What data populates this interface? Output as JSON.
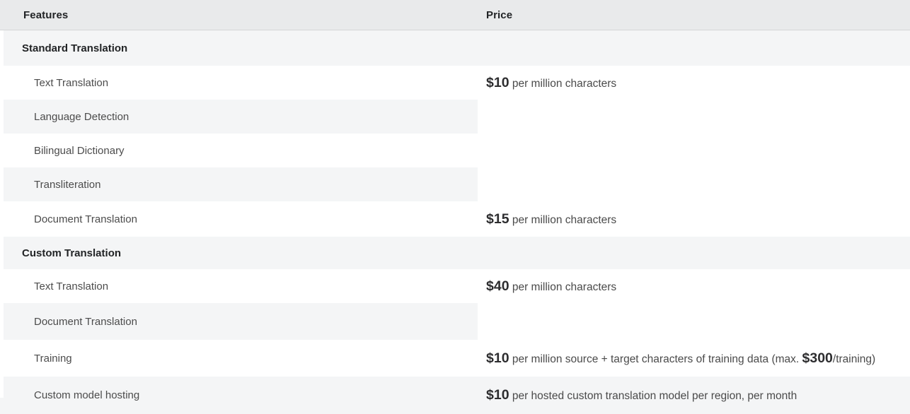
{
  "colors": {
    "header_bg": "#e9eaeb",
    "stripe_bg": "#f4f5f6",
    "header_border": "#d4d6d7",
    "heading_text": "#222426",
    "body_text": "#4c4c4c",
    "price_amount_text": "#2d2d2f"
  },
  "table": {
    "columns": [
      {
        "label": "Features"
      },
      {
        "label": "Price"
      }
    ],
    "rows": [
      {
        "type": "section",
        "feature": "Standard Translation",
        "price_segments": []
      },
      {
        "type": "feature",
        "feature": "Text Translation",
        "price_segments": [
          {
            "text": "$10",
            "emphasis": true
          },
          {
            "text": " per million characters",
            "emphasis": false
          }
        ]
      },
      {
        "type": "feature",
        "feature": "Language Detection",
        "price_segments": []
      },
      {
        "type": "feature",
        "feature": "Bilingual Dictionary",
        "price_segments": []
      },
      {
        "type": "feature",
        "feature": "Transliteration",
        "price_segments": []
      },
      {
        "type": "feature",
        "feature": "Document Translation",
        "price_segments": [
          {
            "text": "$15",
            "emphasis": true
          },
          {
            "text": " per million characters",
            "emphasis": false
          }
        ]
      },
      {
        "type": "section",
        "feature": "Custom Translation",
        "price_segments": []
      },
      {
        "type": "feature",
        "feature": "Text Translation",
        "price_segments": [
          {
            "text": "$40",
            "emphasis": true
          },
          {
            "text": " per million characters",
            "emphasis": false
          }
        ]
      },
      {
        "type": "feature",
        "feature": "Document Translation",
        "price_segments": []
      },
      {
        "type": "feature",
        "feature": "Training",
        "price_segments": [
          {
            "text": "$10",
            "emphasis": true
          },
          {
            "text": " per million source + target characters of training data (max. ",
            "emphasis": false
          },
          {
            "text": "$300",
            "emphasis": true
          },
          {
            "text": "/training)",
            "emphasis": false
          }
        ]
      },
      {
        "type": "feature",
        "feature": "Custom model hosting",
        "price_segments": [
          {
            "text": "$10",
            "emphasis": true
          },
          {
            "text": " per hosted custom translation model per region, per month",
            "emphasis": false
          }
        ]
      }
    ]
  }
}
